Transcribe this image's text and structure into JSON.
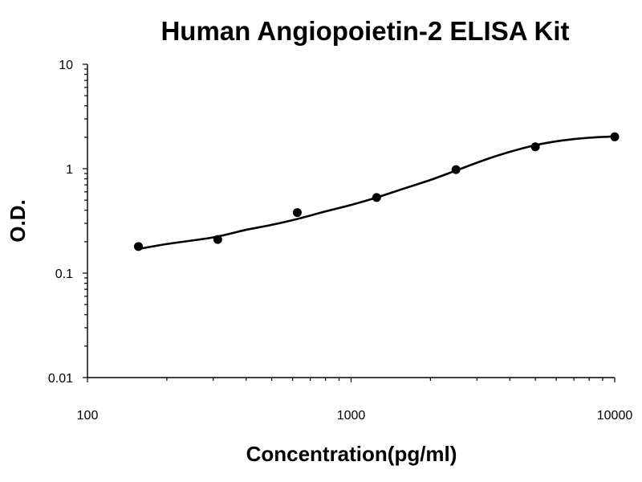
{
  "chart_data": {
    "type": "scatter",
    "title": "Human Angiopoietin-2 ELISA Kit",
    "xlabel": "Concentration(pg/ml)",
    "ylabel": "O.D.",
    "x_scale": "log",
    "y_scale": "log",
    "xlim": [
      100,
      10000
    ],
    "ylim": [
      0.01,
      10
    ],
    "x_ticks": [
      100,
      1000,
      10000
    ],
    "x_tick_labels": [
      "100",
      "1000",
      "10000"
    ],
    "y_ticks": [
      0.01,
      0.1,
      1,
      10
    ],
    "y_tick_labels": [
      "0.01",
      "0.1",
      "1",
      "10"
    ],
    "grid": false,
    "series": [
      {
        "x": [
          156,
          312,
          625,
          1250,
          2500,
          5000,
          10000
        ],
        "y": [
          0.18,
          0.21,
          0.38,
          0.53,
          0.98,
          1.62,
          2.02
        ],
        "color": "#000000"
      }
    ],
    "fit_curve": {
      "type": "4PL",
      "x": [
        156,
        200,
        300,
        400,
        500,
        625,
        800,
        1000,
        1250,
        1600,
        2000,
        2500,
        3200,
        4000,
        5000,
        6300,
        8000,
        10000
      ],
      "y": [
        0.17,
        0.19,
        0.22,
        0.26,
        0.29,
        0.33,
        0.39,
        0.45,
        0.53,
        0.65,
        0.78,
        0.96,
        1.21,
        1.45,
        1.68,
        1.86,
        1.98,
        2.04
      ],
      "color": "#000000"
    }
  }
}
